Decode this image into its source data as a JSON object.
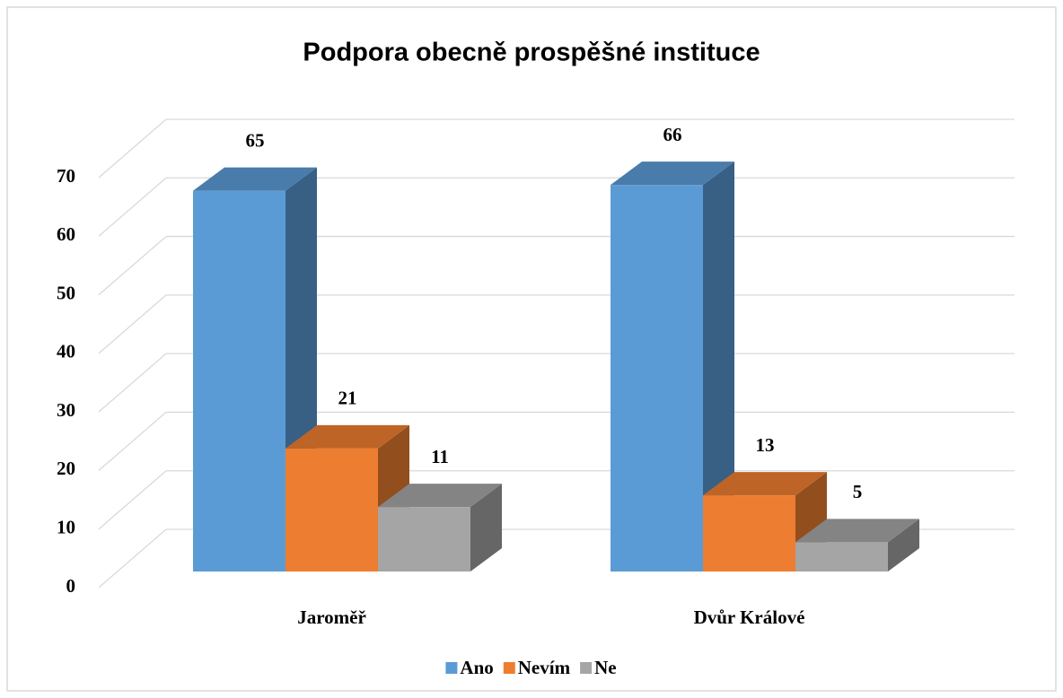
{
  "chart_data": {
    "type": "bar3d",
    "title": "Podpora obecně prospěšné instituce",
    "categories": [
      "Jaroměř",
      "Dvůr Králové"
    ],
    "series": [
      {
        "name": "Ano",
        "color": "#5b9bd5",
        "values": [
          65,
          66
        ]
      },
      {
        "name": "Nevím",
        "color": "#ed7d31",
        "values": [
          21,
          13
        ]
      },
      {
        "name": "Ne",
        "color": "#a5a5a5",
        "values": [
          11,
          5
        ]
      }
    ],
    "ylim": [
      0,
      70
    ],
    "yticks": [
      0,
      10,
      20,
      30,
      40,
      50,
      60,
      70
    ],
    "grid": true,
    "legend": "bottom"
  }
}
